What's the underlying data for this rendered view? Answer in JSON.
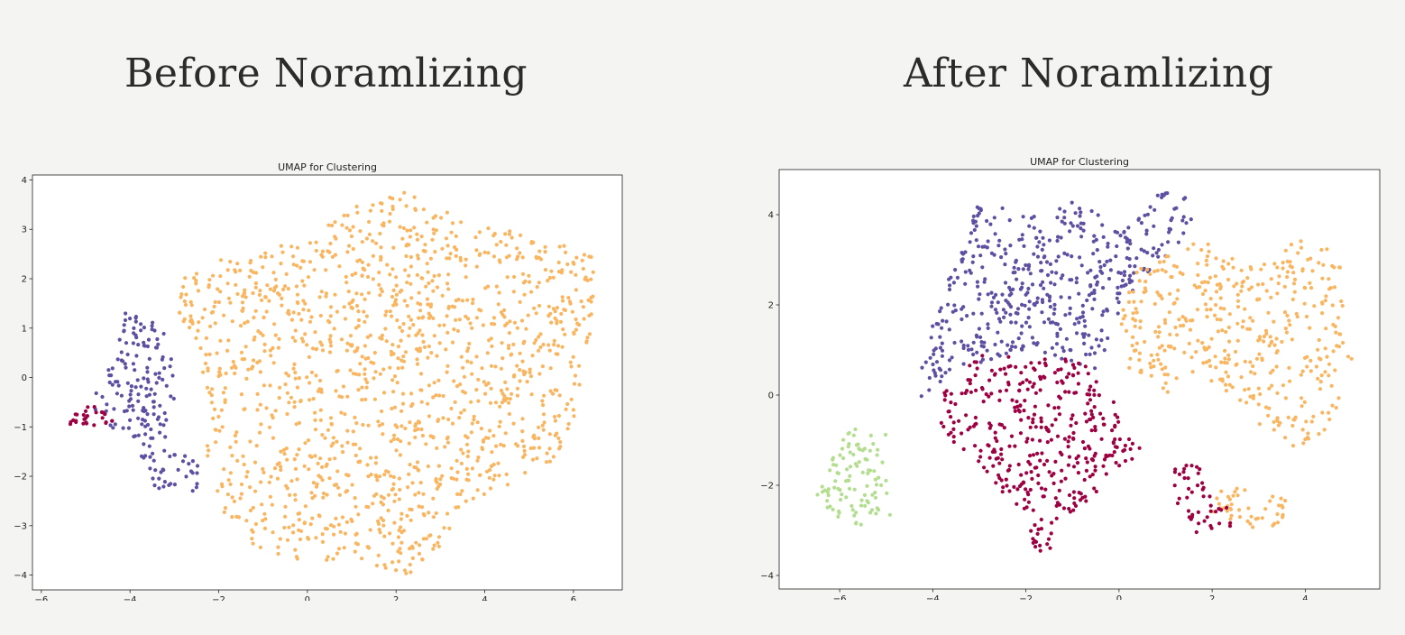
{
  "headings": {
    "left": "Before Noramlizing",
    "right": "After Noramlizing"
  },
  "colors": {
    "orange": "#f9b560",
    "purple": "#5e4fa2",
    "crimson": "#9e0142",
    "green": "#b3dd8f"
  },
  "chart_data": [
    {
      "type": "scatter",
      "title": "UMAP for Clustering",
      "xlabel": "",
      "ylabel": "",
      "xlim": [
        -6.2,
        7.1
      ],
      "ylim": [
        -4.3,
        4.1
      ],
      "xticks": [
        -6,
        -4,
        -2,
        0,
        2,
        4,
        6
      ],
      "yticks": [
        -4,
        -3,
        -2,
        -1,
        0,
        1,
        2,
        3,
        4
      ],
      "grid": false,
      "legend": "none",
      "clusters": [
        {
          "color": "orange",
          "count": 1400,
          "hull": [
            [
              -2.9,
              2.2
            ],
            [
              -2.0,
              2.4
            ],
            [
              0.0,
              2.8
            ],
            [
              1.3,
              3.6
            ],
            [
              2.1,
              3.8
            ],
            [
              3.5,
              3.2
            ],
            [
              5.5,
              2.8
            ],
            [
              6.5,
              2.4
            ],
            [
              6.4,
              1.0
            ],
            [
              6.0,
              -1.0
            ],
            [
              5.5,
              -1.8
            ],
            [
              4.0,
              -2.4
            ],
            [
              3.0,
              -3.4
            ],
            [
              2.3,
              -4.0
            ],
            [
              1.0,
              -3.8
            ],
            [
              -1.0,
              -3.7
            ],
            [
              -1.8,
              -3.0
            ],
            [
              -2.3,
              -2.0
            ],
            [
              -2.2,
              -0.5
            ],
            [
              -2.9,
              1.2
            ]
          ]
        },
        {
          "color": "purple",
          "count": 180,
          "hull": [
            [
              -4.2,
              1.4
            ],
            [
              -3.2,
              1.0
            ],
            [
              -2.9,
              0.0
            ],
            [
              -3.2,
              -1.2
            ],
            [
              -2.4,
              -1.8
            ],
            [
              -2.5,
              -2.3
            ],
            [
              -3.4,
              -2.3
            ],
            [
              -3.9,
              -1.3
            ],
            [
              -4.7,
              -0.9
            ],
            [
              -4.9,
              -0.3
            ],
            [
              -4.4,
              0.3
            ]
          ]
        },
        {
          "color": "crimson",
          "count": 26,
          "hull": [
            [
              -5.4,
              -0.8
            ],
            [
              -4.9,
              -0.5
            ],
            [
              -4.3,
              -0.9
            ],
            [
              -4.6,
              -1.0
            ],
            [
              -5.4,
              -0.95
            ]
          ]
        }
      ]
    },
    {
      "type": "scatter",
      "title": "UMAP for Clustering",
      "xlabel": "",
      "ylabel": "",
      "xlim": [
        -7.3,
        5.6
      ],
      "ylim": [
        -4.3,
        5.0
      ],
      "xticks": [
        -6,
        -4,
        -2,
        0,
        2,
        4
      ],
      "yticks": [
        -4,
        -2,
        0,
        2,
        4
      ],
      "grid": false,
      "legend": "none",
      "clusters": [
        {
          "color": "purple",
          "count": 480,
          "hull": [
            [
              -4.2,
              1.2
            ],
            [
              -3.5,
              3.0
            ],
            [
              -3.0,
              4.3
            ],
            [
              -2.0,
              4.0
            ],
            [
              -1.0,
              4.3
            ],
            [
              0.3,
              3.8
            ],
            [
              1.0,
              4.7
            ],
            [
              1.8,
              4.2
            ],
            [
              1.3,
              3.2
            ],
            [
              0.5,
              2.6
            ],
            [
              0.0,
              1.8
            ],
            [
              -0.5,
              0.5
            ],
            [
              -1.5,
              0.9
            ],
            [
              -2.5,
              0.8
            ],
            [
              -3.5,
              0.6
            ],
            [
              -4.3,
              -0.2
            ]
          ]
        },
        {
          "color": "orange",
          "count": 420,
          "hull": [
            [
              0.3,
              2.8
            ],
            [
              1.6,
              3.5
            ],
            [
              3.0,
              2.8
            ],
            [
              3.8,
              3.5
            ],
            [
              4.5,
              3.4
            ],
            [
              5.1,
              2.2
            ],
            [
              5.0,
              0.5
            ],
            [
              4.5,
              -0.8
            ],
            [
              4.0,
              -1.2
            ],
            [
              3.2,
              -1.0
            ],
            [
              2.5,
              -0.2
            ],
            [
              1.6,
              0.5
            ],
            [
              1.0,
              0.0
            ],
            [
              0.2,
              0.6
            ],
            [
              0.0,
              1.8
            ]
          ]
        },
        {
          "color": "orange",
          "count": 45,
          "hull": [
            [
              2.0,
              -2.0
            ],
            [
              3.6,
              -2.2
            ],
            [
              3.5,
              -3.0
            ],
            [
              2.4,
              -2.9
            ],
            [
              1.8,
              -2.5
            ]
          ]
        },
        {
          "color": "crimson",
          "count": 380,
          "hull": [
            [
              -3.8,
              0.0
            ],
            [
              -3.0,
              1.0
            ],
            [
              -2.0,
              0.8
            ],
            [
              -0.6,
              0.8
            ],
            [
              -0.2,
              0.0
            ],
            [
              0.5,
              -1.2
            ],
            [
              -0.5,
              -2.3
            ],
            [
              -1.2,
              -2.7
            ],
            [
              -1.6,
              -3.8
            ],
            [
              -2.0,
              -3.0
            ],
            [
              -2.6,
              -2.0
            ],
            [
              -3.4,
              -1.3
            ],
            [
              -3.9,
              -0.6
            ]
          ]
        },
        {
          "color": "crimson",
          "count": 45,
          "hull": [
            [
              1.2,
              -1.6
            ],
            [
              1.8,
              -1.4
            ],
            [
              2.0,
              -2.3
            ],
            [
              2.8,
              -2.8
            ],
            [
              1.8,
              -3.1
            ],
            [
              1.1,
              -2.8
            ]
          ]
        },
        {
          "color": "green",
          "count": 100,
          "hull": [
            [
              -5.8,
              -0.7
            ],
            [
              -5.0,
              -0.8
            ],
            [
              -4.9,
              -2.7
            ],
            [
              -5.6,
              -2.9
            ],
            [
              -6.5,
              -2.5
            ],
            [
              -6.5,
              -2.1
            ]
          ]
        }
      ]
    }
  ]
}
